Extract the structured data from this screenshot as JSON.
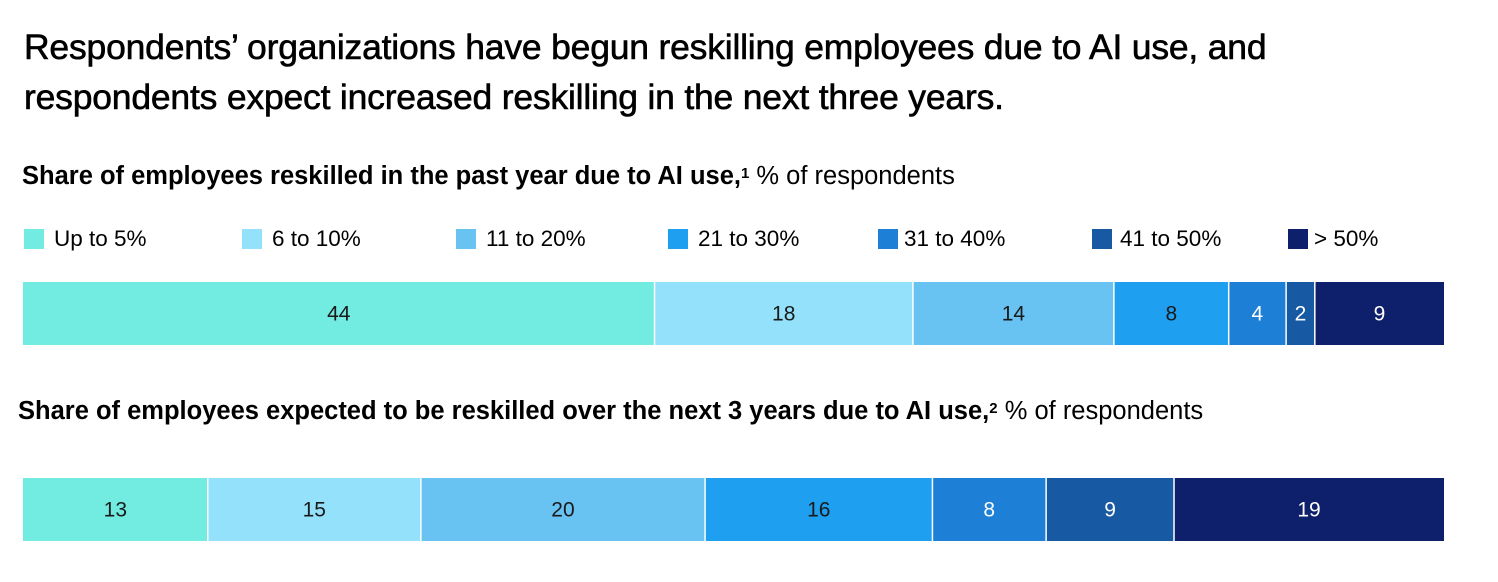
{
  "title": "Respondents’ organizations have begun reskilling employees due to AI use, and respondents expect increased reskilling in the next three years.",
  "colors": [
    "#72ebe1",
    "#94e1fb",
    "#68c3f2",
    "#1f9ff0",
    "#1e7fd6",
    "#1759a3",
    "#0e1f6b"
  ],
  "chart_data": [
    {
      "type": "bar",
      "stacked": true,
      "orientation": "horizontal",
      "title": "Share of employees reskilled in the past year due to AI use,",
      "footnote": "1",
      "unit": "% of respondents",
      "legend": [
        "Up to 5%",
        "6 to 10%",
        "11 to 20%",
        "21 to 30%",
        "31 to 40%",
        "41 to 50%",
        "> 50%"
      ],
      "legend_position": "top",
      "values": [
        44,
        18,
        14,
        8,
        4,
        2,
        9
      ],
      "labels": [
        "44",
        "18",
        "14",
        "8",
        "4",
        "2",
        "9"
      ]
    },
    {
      "type": "bar",
      "stacked": true,
      "orientation": "horizontal",
      "title": "Share of employees expected to be reskilled over the next 3 years due to AI use,",
      "footnote": "2",
      "unit": "% of respondents",
      "values": [
        13,
        15,
        20,
        16,
        8,
        9,
        19
      ],
      "labels": [
        "13",
        "15",
        "20",
        "16",
        "8",
        "9",
        "19"
      ]
    }
  ]
}
